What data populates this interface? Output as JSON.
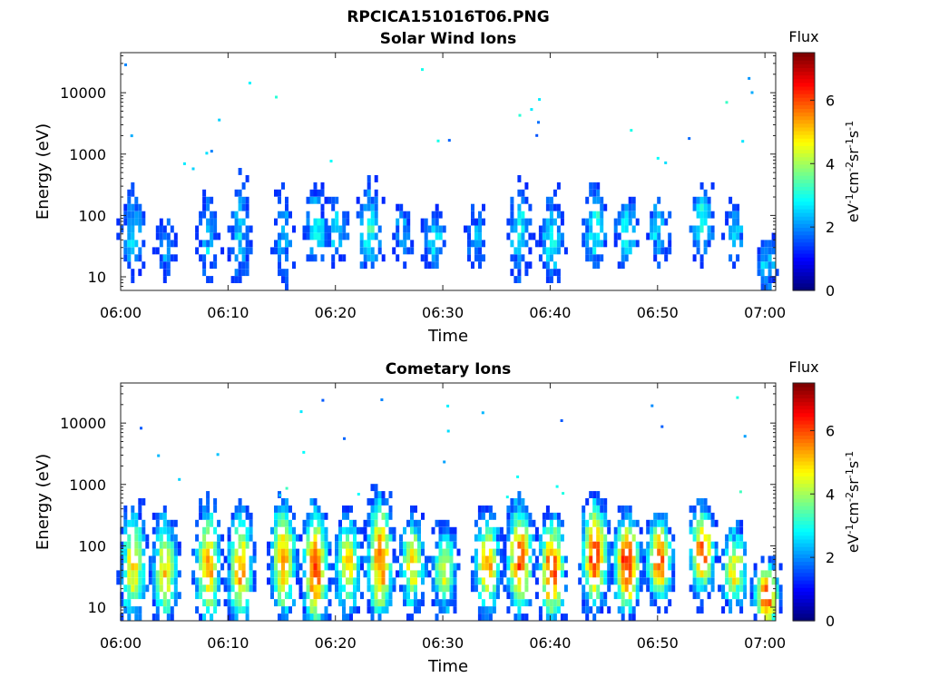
{
  "figure": {
    "filename": "RPCICA151016T06.PNG"
  },
  "chart_data": [
    {
      "type": "heatmap",
      "title": "Solar Wind Ions",
      "xlabel": "Time",
      "ylabel": "Energy (eV)",
      "x_scale": "time",
      "y_scale": "log",
      "x_range": [
        "06:00",
        "07:01"
      ],
      "y_range": [
        6,
        45000
      ],
      "x_ticks": [
        "06:00",
        "06:10",
        "06:20",
        "06:30",
        "06:40",
        "06:50",
        "07:00"
      ],
      "y_ticks": [
        10,
        100,
        1000,
        10000
      ],
      "y_tick_labels": [
        "10",
        "100",
        "1000",
        "10000"
      ],
      "colorbar": {
        "title": "Flux",
        "label": "eV-1cm-2sr-1s-1",
        "range": [
          0,
          7.5
        ],
        "ticks": [
          0,
          2,
          4,
          6
        ],
        "colormap": "jet"
      },
      "bursts": [
        {
          "time": "06:01",
          "e_peak": 50,
          "e_top": 300,
          "flux": 2.6
        },
        {
          "time": "06:04",
          "e_peak": 30,
          "e_top": 120,
          "flux": 2.0
        },
        {
          "time": "06:08",
          "e_peak": 40,
          "e_top": 250,
          "flux": 2.4
        },
        {
          "time": "06:11",
          "e_peak": 45,
          "e_top": 600,
          "flux": 2.3
        },
        {
          "time": "06:15",
          "e_peak": 50,
          "e_top": 500,
          "flux": 2.2
        },
        {
          "time": "06:18",
          "e_peak": 60,
          "e_top": 300,
          "flux": 2.9
        },
        {
          "time": "06:20",
          "e_peak": 60,
          "e_top": 300,
          "flux": 2.3
        },
        {
          "time": "06:23",
          "e_peak": 60,
          "e_top": 350,
          "flux": 3.1
        },
        {
          "time": "06:26",
          "e_peak": 50,
          "e_top": 200,
          "flux": 2.2
        },
        {
          "time": "06:29",
          "e_peak": 40,
          "e_top": 120,
          "flux": 2.6
        },
        {
          "time": "06:33",
          "e_peak": 45,
          "e_top": 150,
          "flux": 2.3
        },
        {
          "time": "06:37",
          "e_peak": 50,
          "e_top": 400,
          "flux": 2.7
        },
        {
          "time": "06:40",
          "e_peak": 40,
          "e_top": 250,
          "flux": 2.8
        },
        {
          "time": "06:44",
          "e_peak": 60,
          "e_top": 400,
          "flux": 2.9
        },
        {
          "time": "06:47",
          "e_peak": 50,
          "e_top": 200,
          "flux": 3.0
        },
        {
          "time": "06:50",
          "e_peak": 60,
          "e_top": 200,
          "flux": 2.7
        },
        {
          "time": "06:54",
          "e_peak": 80,
          "e_top": 300,
          "flux": 3.1
        },
        {
          "time": "06:57",
          "e_peak": 50,
          "e_top": 200,
          "flux": 2.2
        },
        {
          "time": "07:00",
          "e_peak": 15,
          "e_top": 50,
          "flux": 2.4
        }
      ]
    },
    {
      "type": "heatmap",
      "title": "Cometary Ions",
      "xlabel": "Time",
      "ylabel": "Energy (eV)",
      "x_scale": "time",
      "y_scale": "log",
      "x_range": [
        "06:00",
        "07:01"
      ],
      "y_range": [
        6,
        45000
      ],
      "x_ticks": [
        "06:00",
        "06:10",
        "06:20",
        "06:30",
        "06:40",
        "06:50",
        "07:00"
      ],
      "y_ticks": [
        10,
        100,
        1000,
        10000
      ],
      "y_tick_labels": [
        "10",
        "100",
        "1000",
        "10000"
      ],
      "colorbar": {
        "title": "Flux",
        "label": "eV-1cm-2sr-1s-1",
        "range": [
          0,
          7.5
        ],
        "ticks": [
          0,
          2,
          4,
          6
        ],
        "colormap": "jet"
      },
      "bursts": [
        {
          "time": "06:01",
          "e_peak": 45,
          "e_top": 400,
          "flux": 4.9
        },
        {
          "time": "06:04",
          "e_peak": 40,
          "e_top": 300,
          "flux": 5.1
        },
        {
          "time": "06:08",
          "e_peak": 45,
          "e_top": 500,
          "flux": 5.2
        },
        {
          "time": "06:11",
          "e_peak": 40,
          "e_top": 400,
          "flux": 5.3
        },
        {
          "time": "06:15",
          "e_peak": 60,
          "e_top": 600,
          "flux": 5.4
        },
        {
          "time": "06:18",
          "e_peak": 40,
          "e_top": 500,
          "flux": 5.9
        },
        {
          "time": "06:21",
          "e_peak": 50,
          "e_top": 300,
          "flux": 5.0
        },
        {
          "time": "06:24",
          "e_peak": 60,
          "e_top": 700,
          "flux": 5.8
        },
        {
          "time": "06:27",
          "e_peak": 50,
          "e_top": 300,
          "flux": 4.6
        },
        {
          "time": "06:30",
          "e_peak": 40,
          "e_top": 200,
          "flux": 4.3
        },
        {
          "time": "06:34",
          "e_peak": 50,
          "e_top": 300,
          "flux": 5.4
        },
        {
          "time": "06:37",
          "e_peak": 60,
          "e_top": 500,
          "flux": 6.1
        },
        {
          "time": "06:40",
          "e_peak": 40,
          "e_top": 300,
          "flux": 6.2
        },
        {
          "time": "06:44",
          "e_peak": 70,
          "e_top": 500,
          "flux": 6.3
        },
        {
          "time": "06:47",
          "e_peak": 50,
          "e_top": 300,
          "flux": 6.6
        },
        {
          "time": "06:50",
          "e_peak": 60,
          "e_top": 250,
          "flux": 6.1
        },
        {
          "time": "06:54",
          "e_peak": 80,
          "e_top": 400,
          "flux": 5.8
        },
        {
          "time": "06:57",
          "e_peak": 40,
          "e_top": 200,
          "flux": 4.6
        },
        {
          "time": "07:00",
          "e_peak": 15,
          "e_top": 50,
          "flux": 5.9
        }
      ]
    }
  ]
}
